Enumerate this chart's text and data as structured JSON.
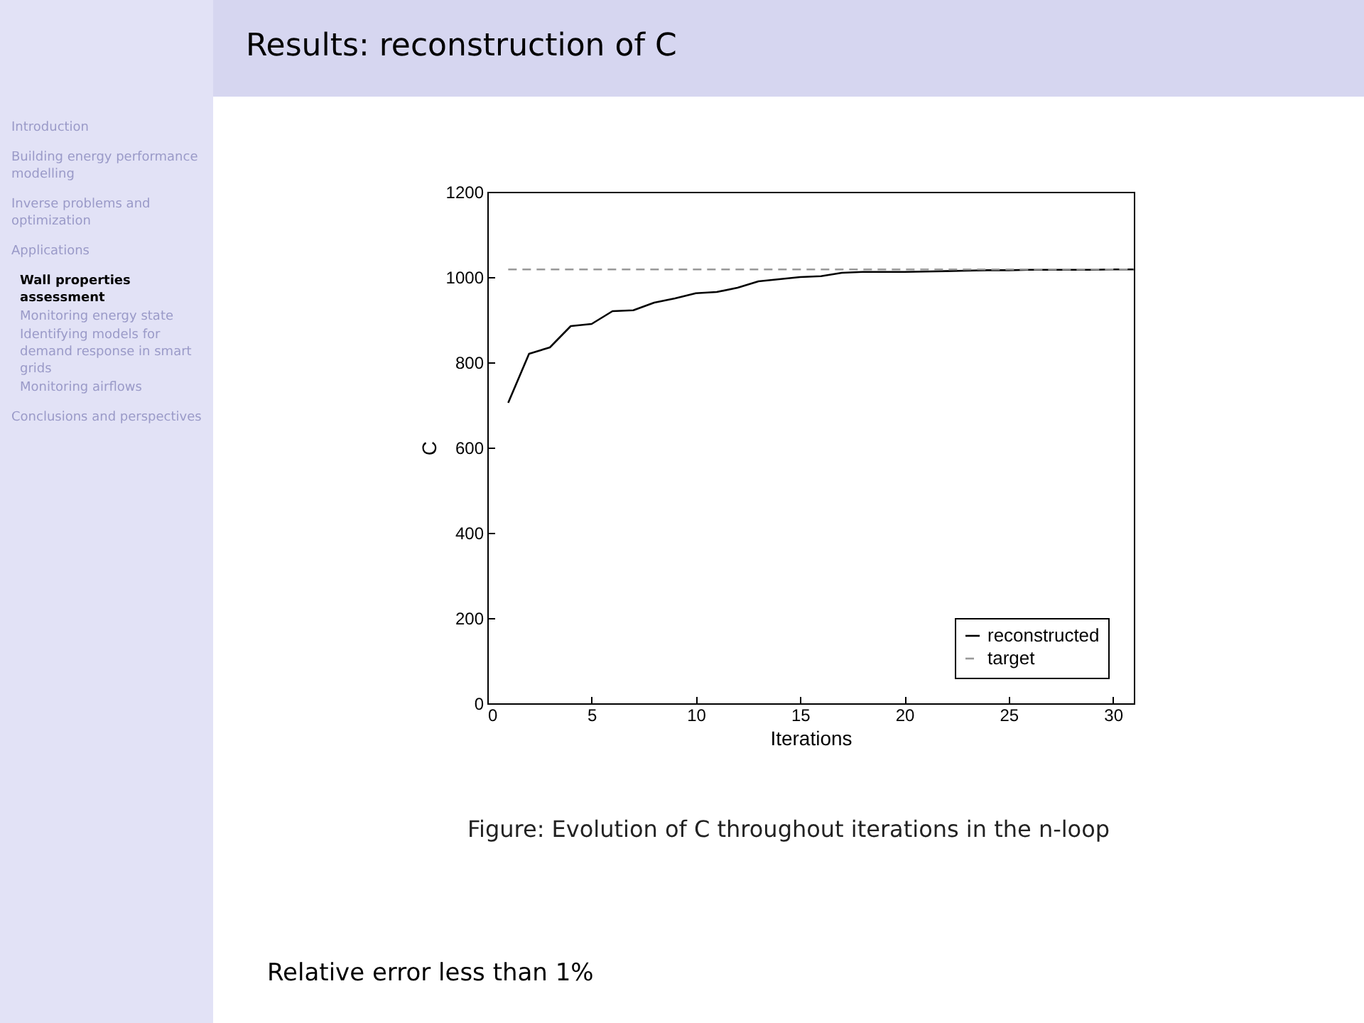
{
  "chart_data": {
    "type": "line",
    "title": "Results: reconstruction of C",
    "xlabel": "Iterations",
    "ylabel": "C",
    "xlim": [
      0,
      31
    ],
    "xticks": [
      0,
      5,
      10,
      15,
      20,
      25,
      30
    ],
    "ylim": [
      0,
      1200
    ],
    "yticks": [
      0,
      200,
      400,
      600,
      800,
      1000,
      1200
    ],
    "x": [
      1,
      2,
      3,
      4,
      5,
      6,
      7,
      8,
      9,
      10,
      11,
      12,
      13,
      14,
      15,
      16,
      17,
      18,
      19,
      20,
      21,
      22,
      23,
      24,
      25,
      26,
      27,
      28,
      29,
      30,
      31
    ],
    "series": [
      {
        "name": "reconstructed",
        "color": "#000000",
        "line_style": "solid",
        "values": [
          705,
          820,
          835,
          885,
          890,
          920,
          922,
          940,
          950,
          962,
          965,
          975,
          990,
          995,
          1000,
          1002,
          1010,
          1012,
          1012,
          1012,
          1013,
          1014,
          1015,
          1016,
          1016,
          1017,
          1017,
          1017,
          1017,
          1018,
          1018
        ]
      },
      {
        "name": "target",
        "color": "#999999",
        "line_style": "dashed",
        "x": [
          1,
          31
        ],
        "values": [
          1018,
          1018
        ]
      }
    ],
    "legend": "bottom right",
    "grid": false,
    "annotations": [
      "Figure: Evolution of C throughout iterations in the n-loop",
      "Relative error less than 1%",
      "Introduction",
      "Building energy performance modelling",
      "Inverse problems and optimization",
      "Applications",
      "Wall properties assessment",
      "Monitoring energy state",
      "Identifying models for demand response in smart grids",
      "Monitoring airflows",
      "Conclusions and perspectives"
    ]
  }
}
